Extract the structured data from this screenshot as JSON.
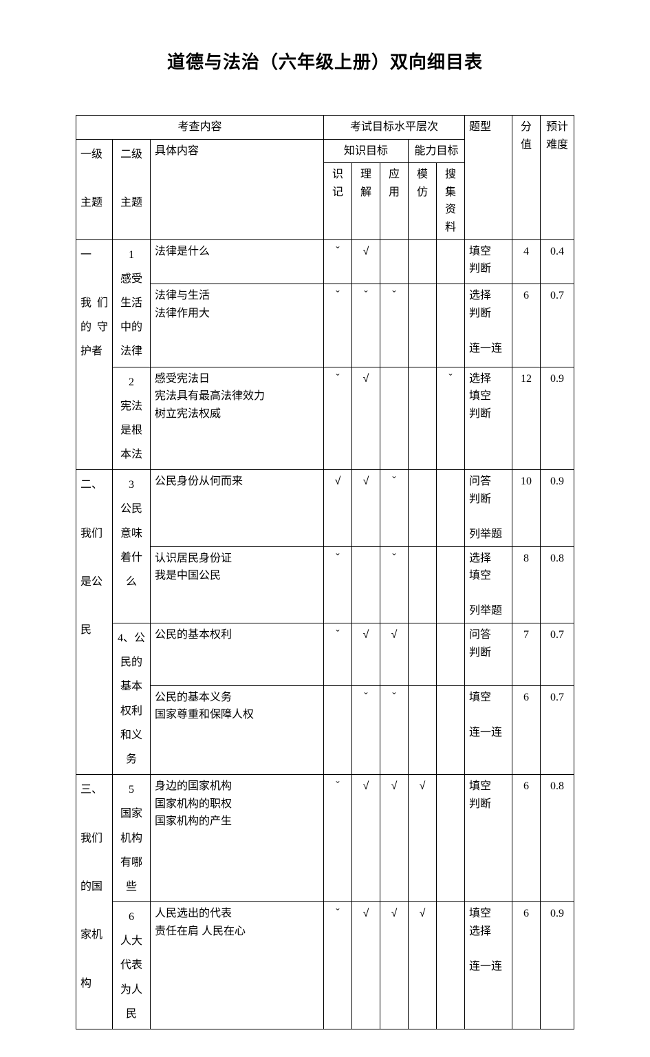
{
  "document": {
    "title": "道德与法治（六年级上册）双向细目表",
    "header": {
      "exam_content": "考查内容",
      "exam_goal_level": "考试目标水平层次",
      "knowledge_goal": "知识目标",
      "ability_goal": "能力目标",
      "question_type": "题型",
      "score": "分值",
      "expected_difficulty": "预计难度",
      "level1_theme": "一级\n\n主题",
      "level2_theme": "二级\n\n主题",
      "specific_content": "具体内容",
      "remember": "识记",
      "understand": "理解",
      "apply": "应用",
      "imitate": "模仿",
      "collect": "搜集资料"
    },
    "rows": [
      {
        "l1": "一\n\n我们的守护者",
        "l1_rowspan": 3,
        "l2": "1\n感受生活中的法律",
        "l2_rowspan": 2,
        "content": "法律是什么",
        "marks": [
          "ˇ",
          "√",
          "",
          "",
          ""
        ],
        "qtype": "填空\n判断",
        "score": "4",
        "difficulty": "0.4"
      },
      {
        "content": "法律与生活\n法律作用大",
        "marks": [
          "ˇ",
          "ˇ",
          "ˇ",
          "",
          ""
        ],
        "qtype": "选择\n判断\n\n连一连",
        "score": "6",
        "difficulty": "0.7"
      },
      {
        "l2": "2\n宪法是根本法",
        "l2_rowspan": 1,
        "content": "感受宪法日\n宪法具有最高法律效力\n树立宪法权威",
        "marks": [
          "ˇ",
          "√",
          "",
          "",
          "ˇ"
        ],
        "qtype": "选择\n填空\n判断",
        "score": "12",
        "difficulty": "0.9"
      },
      {
        "l1": "二、\n\n我们\n\n是公\n\n民",
        "l1_rowspan": 4,
        "l2": "3\n公民意味着什么",
        "l2_rowspan": 2,
        "content": "公民身份从何而来",
        "marks": [
          "√",
          "√",
          "ˇ",
          "",
          ""
        ],
        "qtype": "问答\n判断\n\n列举题",
        "score": "10",
        "difficulty": "0.9"
      },
      {
        "content": "认识居民身份证\n我是中国公民",
        "marks": [
          "ˇ",
          "",
          "ˇ",
          "",
          ""
        ],
        "qtype": "选择\n填空\n\n列举题",
        "score": "8",
        "difficulty": "0.8"
      },
      {
        "l2": "4、公民的基本权利和义务",
        "l2_rowspan": 2,
        "content": "公民的基本权利",
        "marks": [
          "ˇ",
          "√",
          "√",
          "",
          ""
        ],
        "qtype": "问答\n判断",
        "score": "7",
        "difficulty": "0.7"
      },
      {
        "content": "公民的基本义务\n国家尊重和保障人权",
        "marks": [
          "",
          "ˇ",
          "ˇ",
          "",
          ""
        ],
        "qtype": "填空\n\n连一连",
        "score": "6",
        "difficulty": "0.7"
      },
      {
        "l1": "三、\n\n我们\n\n的国\n\n家机\n\n构",
        "l1_rowspan": 2,
        "l2": "5\n国家机构有哪些",
        "l2_rowspan": 1,
        "content": "身边的国家机构\n国家机构的职权\n国家机构的产生",
        "marks": [
          "ˇ",
          "√",
          "√",
          "√",
          ""
        ],
        "qtype": "填空\n判断",
        "score": "6",
        "difficulty": "0.8"
      },
      {
        "l2": "6\n人大代表为人民",
        "l2_rowspan": 1,
        "content": "人民选出的代表\n责任在肩  人民在心",
        "marks": [
          "ˇ",
          "√",
          "√",
          "√",
          ""
        ],
        "qtype": "填空\n选择\n\n连一连",
        "score": "6",
        "difficulty": "0.9"
      }
    ]
  }
}
